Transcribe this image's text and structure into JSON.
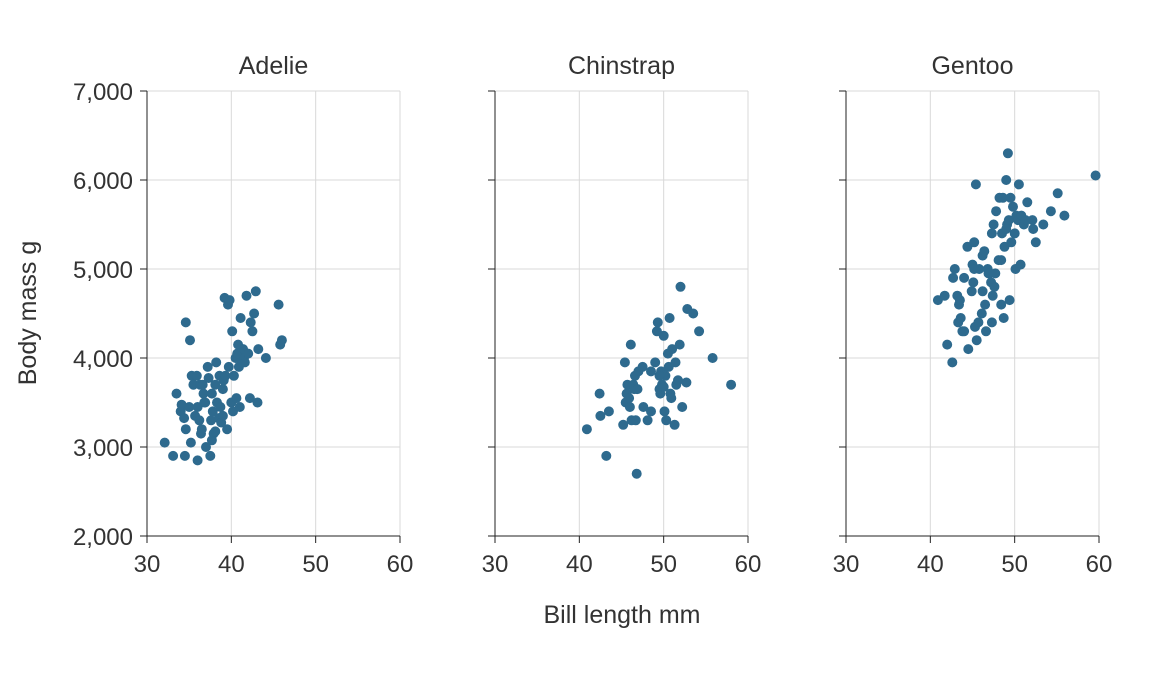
{
  "colors": {
    "point": "#2E6A8E",
    "grid": "#d9d9d9",
    "text": "#333333"
  },
  "chart_data": {
    "type": "scatter",
    "xlabel": "Bill length mm",
    "ylabel": "Body mass g",
    "xlim": [
      30,
      60
    ],
    "ylim": [
      2000,
      7000
    ],
    "x_ticks": [
      30,
      40,
      50,
      60
    ],
    "y_ticks": [
      2000,
      3000,
      4000,
      5000,
      6000,
      7000
    ],
    "y_tick_labels": [
      "2,000",
      "3,000",
      "4,000",
      "5,000",
      "6,000",
      "7,000"
    ],
    "x_tick_labels": [
      "30",
      "40",
      "50",
      "60"
    ],
    "grid": true,
    "facets": [
      {
        "title": "Adelie",
        "points": [
          [
            32.1,
            3050
          ],
          [
            33.1,
            2900
          ],
          [
            33.5,
            3600
          ],
          [
            34.0,
            3400
          ],
          [
            34.1,
            3475
          ],
          [
            34.4,
            3325
          ],
          [
            34.5,
            2900
          ],
          [
            34.6,
            3200
          ],
          [
            34.6,
            4400
          ],
          [
            35.0,
            3450
          ],
          [
            35.1,
            4200
          ],
          [
            35.2,
            3050
          ],
          [
            35.3,
            3800
          ],
          [
            35.5,
            3700
          ],
          [
            35.7,
            3350
          ],
          [
            35.9,
            3800
          ],
          [
            36.0,
            3450
          ],
          [
            36.0,
            2850
          ],
          [
            36.2,
            3300
          ],
          [
            36.3,
            3700
          ],
          [
            36.4,
            3150
          ],
          [
            36.5,
            3200
          ],
          [
            36.6,
            3700
          ],
          [
            36.7,
            3600
          ],
          [
            36.8,
            3500
          ],
          [
            36.9,
            3500
          ],
          [
            37.0,
            3000
          ],
          [
            37.2,
            3900
          ],
          [
            37.3,
            3775
          ],
          [
            37.5,
            2900
          ],
          [
            37.6,
            3300
          ],
          [
            37.7,
            3600
          ],
          [
            37.8,
            3400
          ],
          [
            37.9,
            3150
          ],
          [
            38.1,
            3700
          ],
          [
            38.2,
            3950
          ],
          [
            38.3,
            3500
          ],
          [
            38.5,
            3325
          ],
          [
            38.6,
            3800
          ],
          [
            38.7,
            3450
          ],
          [
            38.8,
            3275
          ],
          [
            39.0,
            3650
          ],
          [
            39.1,
            3750
          ],
          [
            39.2,
            4675
          ],
          [
            39.3,
            3800
          ],
          [
            39.5,
            3200
          ],
          [
            39.6,
            4600
          ],
          [
            39.7,
            3900
          ],
          [
            39.8,
            4650
          ],
          [
            40.0,
            3500
          ],
          [
            40.1,
            4300
          ],
          [
            40.2,
            3400
          ],
          [
            40.3,
            3800
          ],
          [
            40.5,
            4000
          ],
          [
            40.6,
            3550
          ],
          [
            40.7,
            4050
          ],
          [
            40.8,
            4150
          ],
          [
            40.9,
            3900
          ],
          [
            41.0,
            3450
          ],
          [
            41.1,
            4450
          ],
          [
            41.3,
            3950
          ],
          [
            41.4,
            4100
          ],
          [
            41.5,
            4000
          ],
          [
            41.6,
            3950
          ],
          [
            41.8,
            4700
          ],
          [
            42.0,
            4050
          ],
          [
            42.2,
            3550
          ],
          [
            42.3,
            4400
          ],
          [
            42.5,
            4300
          ],
          [
            42.7,
            4500
          ],
          [
            42.9,
            4750
          ],
          [
            43.1,
            3500
          ],
          [
            43.2,
            4100
          ],
          [
            44.1,
            4000
          ],
          [
            45.6,
            4600
          ],
          [
            45.8,
            4150
          ],
          [
            46.0,
            4200
          ],
          [
            37.7,
            3075
          ],
          [
            38.1,
            3175
          ],
          [
            39.0,
            3350
          ]
        ]
      },
      {
        "title": "Chinstrap",
        "points": [
          [
            40.9,
            3200
          ],
          [
            42.4,
            3600
          ],
          [
            42.5,
            3350
          ],
          [
            43.2,
            2900
          ],
          [
            43.5,
            3400
          ],
          [
            45.2,
            3250
          ],
          [
            45.4,
            3950
          ],
          [
            45.5,
            3500
          ],
          [
            45.6,
            3600
          ],
          [
            45.7,
            3700
          ],
          [
            45.9,
            3550
          ],
          [
            46.0,
            3450
          ],
          [
            46.1,
            4150
          ],
          [
            46.2,
            3300
          ],
          [
            46.4,
            3700
          ],
          [
            46.5,
            3650
          ],
          [
            46.6,
            3800
          ],
          [
            46.7,
            3300
          ],
          [
            46.8,
            2700
          ],
          [
            46.9,
            3650
          ],
          [
            47.0,
            3850
          ],
          [
            47.5,
            3900
          ],
          [
            47.6,
            3450
          ],
          [
            48.1,
            3300
          ],
          [
            48.5,
            3400
          ],
          [
            49.0,
            3950
          ],
          [
            49.2,
            4300
          ],
          [
            49.3,
            4400
          ],
          [
            49.5,
            3650
          ],
          [
            49.6,
            3600
          ],
          [
            49.7,
            3850
          ],
          [
            49.8,
            3700
          ],
          [
            50.0,
            3675
          ],
          [
            50.1,
            3400
          ],
          [
            50.2,
            3800
          ],
          [
            50.3,
            3300
          ],
          [
            50.5,
            4050
          ],
          [
            50.6,
            3900
          ],
          [
            50.7,
            4450
          ],
          [
            50.8,
            3600
          ],
          [
            50.9,
            3550
          ],
          [
            51.0,
            4100
          ],
          [
            51.3,
            3250
          ],
          [
            51.4,
            3950
          ],
          [
            51.5,
            3700
          ],
          [
            51.7,
            3750
          ],
          [
            51.9,
            4150
          ],
          [
            52.0,
            4800
          ],
          [
            52.2,
            3450
          ],
          [
            52.7,
            3725
          ],
          [
            52.8,
            4550
          ],
          [
            53.5,
            4500
          ],
          [
            54.2,
            4300
          ],
          [
            55.8,
            4000
          ],
          [
            58.0,
            3700
          ],
          [
            49.5,
            3800
          ],
          [
            48.5,
            3850
          ],
          [
            50.0,
            4250
          ]
        ]
      },
      {
        "title": "Gentoo",
        "points": [
          [
            40.9,
            4650
          ],
          [
            41.7,
            4700
          ],
          [
            42.0,
            4150
          ],
          [
            42.6,
            3950
          ],
          [
            42.7,
            4900
          ],
          [
            42.9,
            5000
          ],
          [
            43.2,
            4700
          ],
          [
            43.3,
            4400
          ],
          [
            43.4,
            4600
          ],
          [
            43.5,
            4650
          ],
          [
            43.6,
            4450
          ],
          [
            43.8,
            4300
          ],
          [
            44.0,
            4900
          ],
          [
            44.4,
            5250
          ],
          [
            44.5,
            4100
          ],
          [
            44.9,
            4750
          ],
          [
            45.0,
            5050
          ],
          [
            45.1,
            4850
          ],
          [
            45.2,
            5300
          ],
          [
            45.3,
            4350
          ],
          [
            45.4,
            5950
          ],
          [
            45.5,
            4200
          ],
          [
            45.7,
            4400
          ],
          [
            45.8,
            5000
          ],
          [
            46.1,
            4500
          ],
          [
            46.2,
            5150
          ],
          [
            46.4,
            5200
          ],
          [
            46.5,
            4600
          ],
          [
            46.6,
            4300
          ],
          [
            46.8,
            5000
          ],
          [
            46.9,
            4950
          ],
          [
            47.2,
            4850
          ],
          [
            47.3,
            5400
          ],
          [
            47.4,
            4700
          ],
          [
            47.5,
            5500
          ],
          [
            47.6,
            4800
          ],
          [
            47.7,
            4950
          ],
          [
            47.8,
            5650
          ],
          [
            48.1,
            5100
          ],
          [
            48.2,
            5800
          ],
          [
            48.4,
            4600
          ],
          [
            48.5,
            5400
          ],
          [
            48.6,
            5800
          ],
          [
            48.7,
            4450
          ],
          [
            48.8,
            5250
          ],
          [
            49.0,
            6000
          ],
          [
            49.1,
            5500
          ],
          [
            49.2,
            6300
          ],
          [
            49.3,
            5550
          ],
          [
            49.4,
            4650
          ],
          [
            49.5,
            5800
          ],
          [
            49.6,
            5300
          ],
          [
            49.8,
            5700
          ],
          [
            50.0,
            5400
          ],
          [
            50.1,
            5000
          ],
          [
            50.2,
            5600
          ],
          [
            50.4,
            5550
          ],
          [
            50.5,
            5950
          ],
          [
            50.7,
            5050
          ],
          [
            50.8,
            5600
          ],
          [
            51.1,
            5500
          ],
          [
            51.3,
            5550
          ],
          [
            51.5,
            5750
          ],
          [
            52.1,
            5550
          ],
          [
            52.2,
            5450
          ],
          [
            52.5,
            5300
          ],
          [
            53.4,
            5500
          ],
          [
            54.3,
            5650
          ],
          [
            55.1,
            5850
          ],
          [
            55.9,
            5600
          ],
          [
            59.6,
            6050
          ],
          [
            45.2,
            5000
          ],
          [
            46.2,
            4750
          ],
          [
            47.3,
            4400
          ],
          [
            48.4,
            5100
          ],
          [
            44.0,
            4300
          ],
          [
            47.0,
            4950
          ],
          [
            49.0,
            5450
          ]
        ]
      }
    ]
  }
}
